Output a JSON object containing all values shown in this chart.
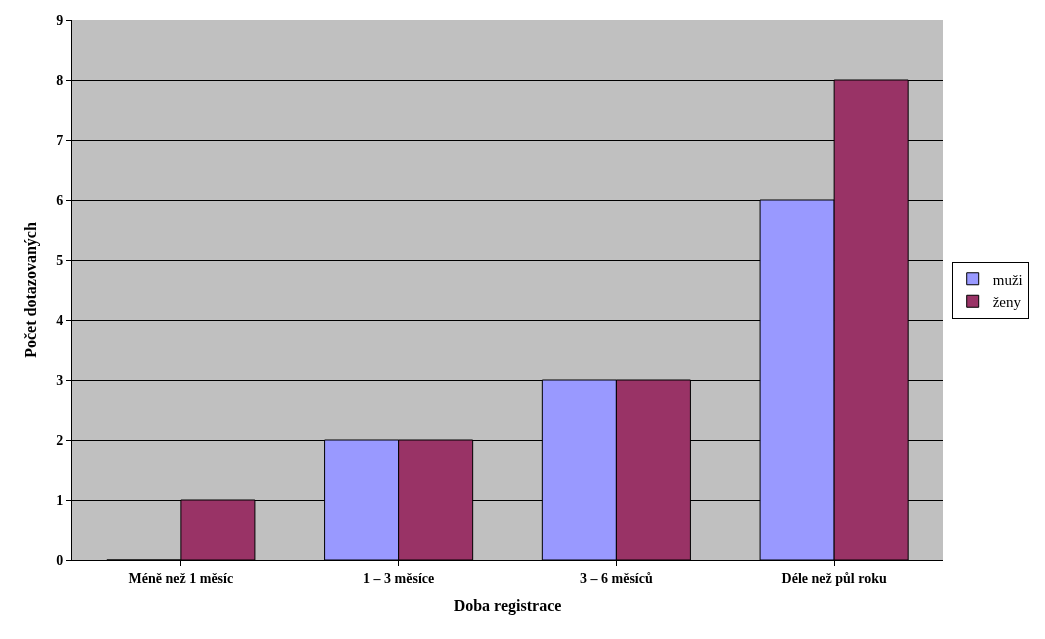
{
  "chart_data": {
    "type": "bar",
    "xlabel": "Doba registrace",
    "ylabel": "Počet dotazovaných",
    "categories": [
      "Méně než 1 měsíc",
      "1 – 3 měsíce",
      "3 – 6 měsíců",
      "Déle než půl roku"
    ],
    "series": [
      {
        "name": "muži",
        "color": "#9999ff",
        "values": [
          0,
          2,
          3,
          6
        ]
      },
      {
        "name": "ženy",
        "color": "#993366",
        "values": [
          1,
          2,
          3,
          8
        ]
      }
    ],
    "ylim": [
      0,
      9
    ],
    "yticks": [
      0,
      1,
      2,
      3,
      4,
      5,
      6,
      7,
      8,
      9
    ],
    "grid": "y",
    "legend": "right"
  }
}
